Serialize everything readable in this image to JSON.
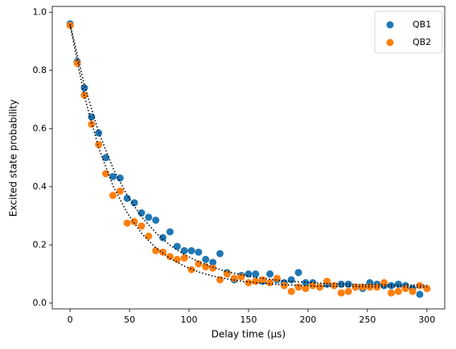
{
  "chart_data": {
    "type": "scatter",
    "xlabel": "Delay time (µs)",
    "ylabel": "Excited state probability",
    "x": [
      0,
      6,
      12,
      18,
      24,
      30,
      36,
      42,
      48,
      54,
      60,
      66,
      72,
      78,
      84,
      90,
      96,
      102,
      108,
      114,
      120,
      126,
      132,
      138,
      144,
      150,
      156,
      162,
      168,
      174,
      180,
      186,
      192,
      198,
      204,
      210,
      216,
      222,
      228,
      234,
      240,
      246,
      252,
      258,
      264,
      270,
      276,
      282,
      288,
      294,
      300
    ],
    "series": [
      {
        "name": "QB1",
        "color": "#1f77b4",
        "values": [
          0.96,
          0.83,
          0.74,
          0.64,
          0.585,
          0.5,
          0.435,
          0.43,
          0.36,
          0.345,
          0.31,
          0.295,
          0.285,
          0.225,
          0.245,
          0.195,
          0.18,
          0.18,
          0.175,
          0.15,
          0.14,
          0.17,
          0.105,
          0.08,
          0.095,
          0.1,
          0.1,
          0.075,
          0.1,
          0.08,
          0.07,
          0.08,
          0.105,
          0.07,
          0.07,
          0.055,
          0.065,
          0.06,
          0.065,
          0.065,
          0.055,
          0.05,
          0.07,
          0.065,
          0.06,
          0.06,
          0.065,
          0.06,
          0.05,
          0.03,
          0.05
        ]
      },
      {
        "name": "QB2",
        "color": "#ff7f0e",
        "values": [
          0.955,
          0.825,
          0.715,
          0.615,
          0.545,
          0.445,
          0.37,
          0.385,
          0.275,
          0.28,
          0.265,
          0.23,
          0.18,
          0.175,
          0.16,
          0.15,
          0.155,
          0.115,
          0.135,
          0.125,
          0.12,
          0.08,
          0.1,
          0.085,
          0.09,
          0.07,
          0.075,
          0.08,
          0.07,
          0.085,
          0.06,
          0.04,
          0.055,
          0.05,
          0.06,
          0.055,
          0.075,
          0.06,
          0.035,
          0.04,
          0.055,
          0.055,
          0.055,
          0.055,
          0.07,
          0.035,
          0.04,
          0.05,
          0.04,
          0.06,
          0.05
        ]
      }
    ],
    "fits": [
      {
        "color": "#000000",
        "x": [
          0,
          12,
          24,
          36,
          48,
          60,
          72,
          84,
          96,
          108,
          120,
          132,
          144,
          156,
          168,
          180,
          192,
          204,
          216,
          228,
          240,
          252,
          264,
          276,
          288,
          300
        ],
        "values": [
          0.96,
          0.749,
          0.588,
          0.464,
          0.37,
          0.297,
          0.242,
          0.199,
          0.167,
          0.142,
          0.123,
          0.108,
          0.097,
          0.088,
          0.082,
          0.076,
          0.073,
          0.07,
          0.067,
          0.066,
          0.064,
          0.063,
          0.063,
          0.062,
          0.062,
          0.061
        ]
      },
      {
        "color": "#000000",
        "x": [
          0,
          12,
          24,
          36,
          48,
          60,
          72,
          84,
          96,
          108,
          120,
          132,
          144,
          156,
          168,
          180,
          192,
          204,
          216,
          228,
          240,
          252,
          264,
          276,
          288,
          300
        ],
        "values": [
          0.955,
          0.711,
          0.534,
          0.404,
          0.31,
          0.24,
          0.19,
          0.154,
          0.127,
          0.107,
          0.093,
          0.083,
          0.075,
          0.07,
          0.066,
          0.063,
          0.061,
          0.059,
          0.058,
          0.057,
          0.057,
          0.056,
          0.056,
          0.056,
          0.055,
          0.055
        ]
      }
    ],
    "xlim": [
      -15,
      315
    ],
    "ylim": [
      -0.02,
      1.02
    ],
    "xticks": [
      0,
      50,
      100,
      150,
      200,
      250,
      300
    ],
    "yticks": [
      {
        "value": 0,
        "label": "0.0"
      },
      0.2,
      0.4,
      0.6,
      0.8,
      {
        "value": 1,
        "label": "1.0"
      }
    ],
    "legend": "upper right"
  }
}
